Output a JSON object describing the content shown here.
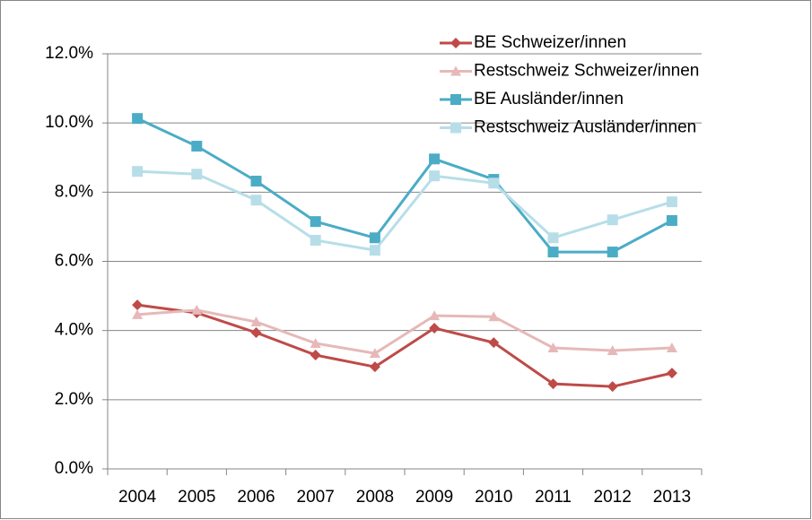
{
  "chart_data": {
    "type": "line",
    "categories": [
      "2004",
      "2005",
      "2006",
      "2007",
      "2008",
      "2009",
      "2010",
      "2011",
      "2012",
      "2013"
    ],
    "series": [
      {
        "name": "BE Schweizer/innen",
        "color": "#be4b48",
        "marker": "diamond",
        "values": [
          4.74,
          4.51,
          3.94,
          3.29,
          2.95,
          4.07,
          3.65,
          2.46,
          2.38,
          2.77
        ]
      },
      {
        "name": "Restschweiz Schweizer/innen",
        "color": "#e6b9b8",
        "marker": "triangle",
        "values": [
          4.46,
          4.59,
          4.25,
          3.63,
          3.34,
          4.43,
          4.4,
          3.5,
          3.42,
          3.5
        ]
      },
      {
        "name": "BE Ausländer/innen",
        "color": "#4bacc6",
        "marker": "square",
        "values": [
          10.13,
          9.33,
          8.32,
          7.15,
          6.68,
          8.96,
          8.37,
          6.27,
          6.27,
          7.18
        ]
      },
      {
        "name": "Restschweiz Ausländer/innen",
        "color": "#b7dee8",
        "marker": "square",
        "values": [
          8.6,
          8.52,
          7.77,
          6.61,
          6.32,
          8.47,
          8.26,
          6.68,
          7.2,
          7.72
        ]
      }
    ],
    "ylim": [
      0,
      12
    ],
    "yticks": [
      {
        "value": 0,
        "label": "0.0%"
      },
      {
        "value": 2,
        "label": "2.0%"
      },
      {
        "value": 4,
        "label": "4.0%"
      },
      {
        "value": 6,
        "label": "6.0%"
      },
      {
        "value": 8,
        "label": "8.0%"
      },
      {
        "value": 10,
        "label": "10.0%"
      },
      {
        "value": 12,
        "label": "12.0%"
      }
    ],
    "grid": true,
    "legend": "top-right"
  }
}
